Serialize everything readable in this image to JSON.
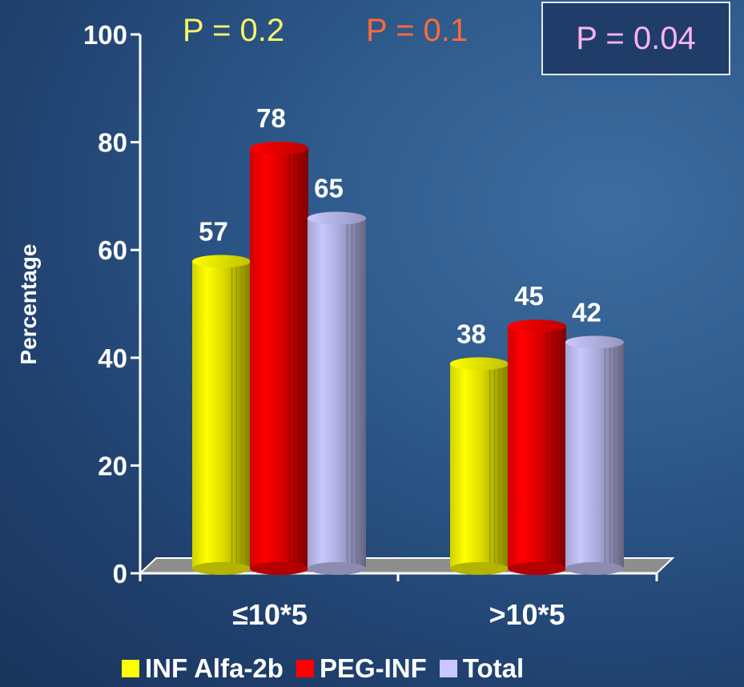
{
  "annotations": {
    "p1": {
      "text": "P = 0.2",
      "color": "#f5f56b"
    },
    "p2": {
      "text": "P = 0.1",
      "color": "#ff6a3a"
    },
    "p3": {
      "text": "P = 0.04",
      "color": "#ffb3f0"
    }
  },
  "chart_data": {
    "type": "bar",
    "ylabel": "Percentage",
    "ylim": [
      0,
      100
    ],
    "yticks": [
      "0",
      "20",
      "40",
      "60",
      "80",
      "100"
    ],
    "categories": [
      "≤10*5",
      ">10*5"
    ],
    "series": [
      {
        "name": "INF Alfa-2b",
        "values": [
          57,
          38
        ],
        "color": "#ffff00"
      },
      {
        "name": "PEG-INF",
        "values": [
          78,
          45
        ],
        "color": "#ff0000"
      },
      {
        "name": "Total",
        "values": [
          65,
          42
        ],
        "color": "#c8c8ff"
      }
    ],
    "data_labels": [
      [
        "57",
        "38"
      ],
      [
        "78",
        "45"
      ],
      [
        "65",
        "42"
      ]
    ],
    "legend_position": "bottom",
    "style": "3d-cylinder"
  }
}
